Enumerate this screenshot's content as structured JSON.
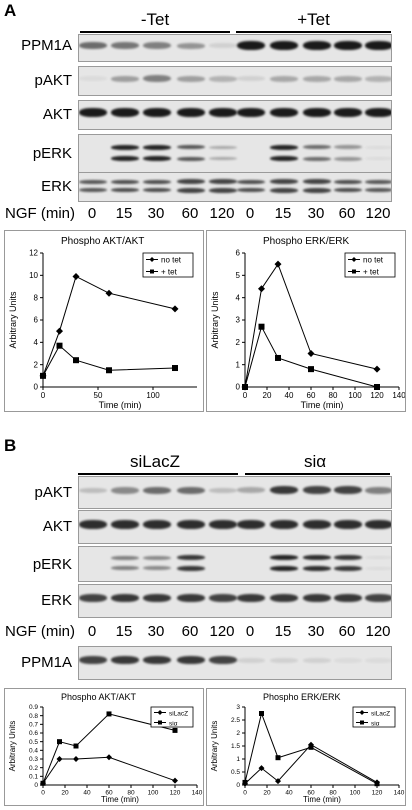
{
  "panelA": {
    "letter": "A",
    "groups": [
      "-Tet",
      "+Tet"
    ],
    "blots": [
      "PPM1A",
      "pAKT",
      "AKT",
      "pERK",
      "ERK"
    ],
    "time_axis_label": "NGF (min)",
    "times": [
      "0",
      "15",
      "30",
      "60",
      "120",
      "0",
      "15",
      "30",
      "60",
      "120"
    ],
    "intensities": {
      "PPM1A": [
        0.6,
        0.55,
        0.5,
        0.4,
        0.1,
        1,
        1,
        1,
        1,
        1
      ],
      "pAKT": [
        0.05,
        0.35,
        0.5,
        0.35,
        0.25,
        0.1,
        0.3,
        0.3,
        0.3,
        0.25
      ],
      "AKT": [
        1,
        1,
        1,
        1,
        1,
        1,
        1,
        1,
        1,
        1
      ],
      "pERK": [
        0,
        0.95,
        0.95,
        0.7,
        0.3,
        0,
        0.95,
        0.6,
        0.4,
        0.05
      ],
      "ERK": [
        0.7,
        0.75,
        0.75,
        0.8,
        0.8,
        0.75,
        0.8,
        0.8,
        0.75,
        0.7
      ]
    }
  },
  "panelB": {
    "letter": "B",
    "groups": [
      "siLacZ",
      "siα"
    ],
    "blots": [
      "pAKT",
      "AKT",
      "pERK",
      "ERK"
    ],
    "time_axis_label": "NGF (min)",
    "times": [
      "0",
      "15",
      "30",
      "60",
      "120",
      "0",
      "15",
      "30",
      "60",
      "120"
    ],
    "ppm1a_label": "PPM1A",
    "intensities": {
      "pAKT": [
        0.2,
        0.45,
        0.6,
        0.6,
        0.2,
        0.3,
        0.85,
        0.8,
        0.8,
        0.5
      ],
      "AKT": [
        0.9,
        0.9,
        0.9,
        0.9,
        0.9,
        0.9,
        0.9,
        0.9,
        0.9,
        0.9
      ],
      "pERK": [
        0,
        0.5,
        0.45,
        0.85,
        0,
        0,
        0.95,
        0.9,
        0.85,
        0.05
      ],
      "ERK": [
        0.8,
        0.85,
        0.85,
        0.85,
        0.8,
        0.85,
        0.85,
        0.85,
        0.85,
        0.8
      ],
      "PPM1A": [
        0.8,
        0.85,
        0.85,
        0.85,
        0.8,
        0.1,
        0.1,
        0.1,
        0.05,
        0.05
      ]
    }
  },
  "chart_data": [
    {
      "type": "line",
      "title": "Phospho  AKT/AKT",
      "xlabel": "Time (min)",
      "ylabel": "Arbitrary Units",
      "xlim": [
        0,
        140
      ],
      "ylim": [
        0,
        12
      ],
      "xticks": [
        0,
        50,
        100
      ],
      "yticks": [
        0,
        2,
        4,
        6,
        8,
        10,
        12
      ],
      "legend": "top-right",
      "series": [
        {
          "name": "no tet",
          "marker": "diamond",
          "x": [
            0,
            15,
            30,
            60,
            120
          ],
          "y": [
            1,
            5,
            9.9,
            8.4,
            7
          ]
        },
        {
          "name": "+ tet",
          "marker": "square",
          "x": [
            0,
            15,
            30,
            60,
            120
          ],
          "y": [
            1,
            3.7,
            2.4,
            1.5,
            1.7
          ]
        }
      ]
    },
    {
      "type": "line",
      "title": "Phospho  ERK/ERK",
      "xlabel": "Time (min)",
      "ylabel": "Arbitrary Units",
      "xlim": [
        0,
        140
      ],
      "ylim": [
        0,
        6
      ],
      "xticks": [
        0,
        20,
        40,
        60,
        80,
        100,
        120,
        140
      ],
      "yticks": [
        0,
        1,
        2,
        3,
        4,
        5,
        6
      ],
      "legend": "top-right",
      "series": [
        {
          "name": "no tet",
          "marker": "diamond",
          "x": [
            0,
            15,
            30,
            60,
            120
          ],
          "y": [
            0,
            4.4,
            5.5,
            1.5,
            0.8
          ]
        },
        {
          "name": "+ tet",
          "marker": "square",
          "x": [
            0,
            15,
            30,
            60,
            120
          ],
          "y": [
            0,
            2.7,
            1.3,
            0.8,
            0
          ]
        }
      ]
    },
    {
      "type": "line",
      "title": "Phospho  AKT/AKT",
      "xlabel": "Time (min)",
      "ylabel": "Arbitrary Units",
      "xlim": [
        0,
        140
      ],
      "ylim": [
        0,
        0.9
      ],
      "xticks": [
        0,
        20,
        40,
        60,
        80,
        100,
        120,
        140
      ],
      "yticks": [
        0,
        0.1,
        0.2,
        0.3,
        0.4,
        0.5,
        0.6,
        0.7,
        0.8,
        0.9
      ],
      "legend": "top-right",
      "series": [
        {
          "name": "siLacZ",
          "marker": "diamond",
          "x": [
            0,
            15,
            30,
            60,
            120
          ],
          "y": [
            0.02,
            0.3,
            0.3,
            0.32,
            0.05
          ]
        },
        {
          "name": "siα",
          "marker": "square",
          "x": [
            0,
            15,
            30,
            60,
            120
          ],
          "y": [
            0.02,
            0.5,
            0.45,
            0.82,
            0.63
          ]
        }
      ]
    },
    {
      "type": "line",
      "title": "Phospho  ERK/ERK",
      "xlabel": "Time (min)",
      "ylabel": "Arbitrary Units",
      "xlim": [
        0,
        140
      ],
      "ylim": [
        0,
        3
      ],
      "xticks": [
        0,
        20,
        40,
        60,
        80,
        100,
        120,
        140
      ],
      "yticks": [
        0,
        0.5,
        1,
        1.5,
        2,
        2.5,
        3
      ],
      "legend": "top-right",
      "series": [
        {
          "name": "siLacZ",
          "marker": "diamond",
          "x": [
            0,
            15,
            30,
            60,
            120
          ],
          "y": [
            0.05,
            0.65,
            0.15,
            1.55,
            0.1
          ]
        },
        {
          "name": "siα",
          "marker": "square",
          "x": [
            0,
            15,
            30,
            60,
            120
          ],
          "y": [
            0.1,
            2.75,
            1.05,
            1.45,
            0.05
          ]
        }
      ]
    }
  ]
}
